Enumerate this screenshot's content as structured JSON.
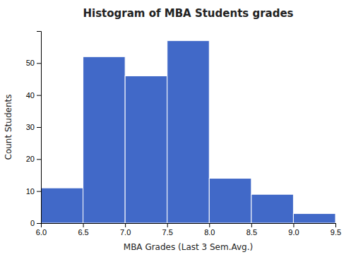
{
  "chart_data": {
    "type": "histogram",
    "title": "Histogram of MBA Students grades",
    "x_label": "MBA Grades (Last 3 Sem.Avg.)",
    "y_label": "Count Students",
    "bins": [
      6.0,
      6.5,
      7.0,
      7.5,
      8.0,
      8.5,
      9.0,
      9.5
    ],
    "values": [
      11,
      52,
      46,
      57,
      14,
      9,
      3
    ],
    "color": "#4169C8",
    "xlim": [
      6.0,
      9.5
    ],
    "xticks": [
      {
        "value": 6.0,
        "label": "6.0"
      },
      6.5,
      {
        "value": 7.0,
        "label": "7.0"
      },
      7.5,
      {
        "value": 8.0,
        "label": "8.0"
      },
      8.5,
      {
        "value": 9.0,
        "label": "9.0"
      },
      9.5
    ],
    "ylim": [
      0,
      60
    ],
    "yticks": [
      0,
      10,
      20,
      30,
      40,
      50
    ],
    "grid": false
  }
}
